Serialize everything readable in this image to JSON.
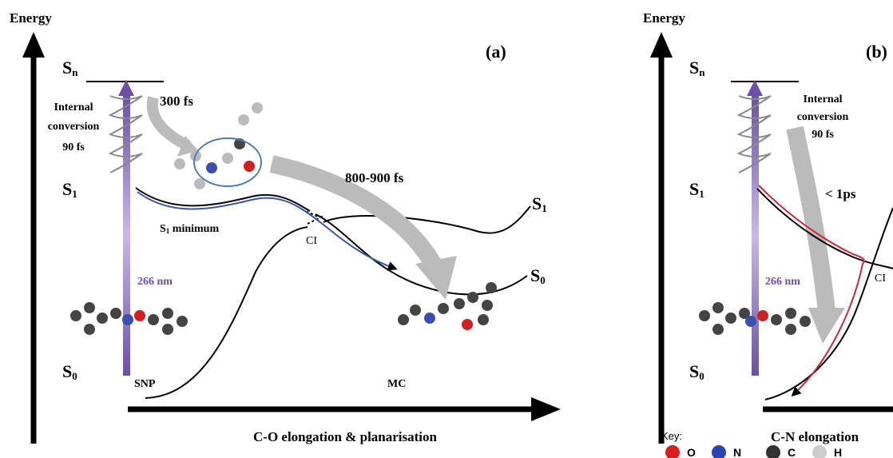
{
  "panel_a": {
    "y_axis_label": "Energy",
    "panel_label": "(a)",
    "x_axis_label": "C-O elongation & planarisation",
    "states_left": [
      {
        "main": "S",
        "sub": "n"
      },
      {
        "main": "S",
        "sub": "1"
      },
      {
        "main": "S",
        "sub": "0"
      }
    ],
    "states_right": [
      {
        "main": "S",
        "sub": "1"
      },
      {
        "main": "S",
        "sub": "0"
      }
    ],
    "internal_conversion": [
      "Internal",
      "conversion",
      "90 fs"
    ],
    "time_short": "300 fs",
    "time_long": "800-900 fs",
    "s1_minimum": {
      "main": "S",
      "sub": "1",
      "rest": " minimum"
    },
    "ci": "CI",
    "excitation": "266 nm",
    "start_label": "SNP",
    "end_label": "MC"
  },
  "panel_b": {
    "y_axis_label": "Energy",
    "panel_label": "(b)",
    "x_axis_label": "C-N elongation",
    "states_left": [
      {
        "main": "S",
        "sub": "n"
      },
      {
        "main": "S",
        "sub": "1"
      },
      {
        "main": "S",
        "sub": "0"
      }
    ],
    "internal_conversion": [
      "Internal",
      "conversion",
      "90 fs"
    ],
    "time": "< 1ps",
    "excitation": "266 nm",
    "ci": "CI"
  },
  "key": {
    "title": "Key:",
    "items": [
      "O",
      "N",
      "C",
      "H"
    ]
  }
}
